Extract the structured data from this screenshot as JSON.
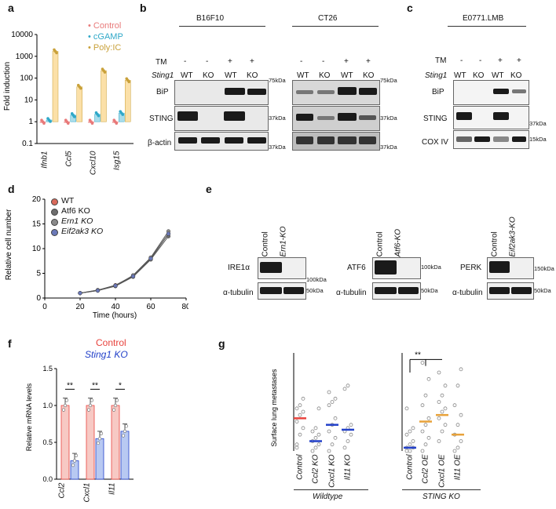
{
  "panels": {
    "a": "a",
    "b": "b",
    "c": "c",
    "d": "d",
    "e": "e",
    "f": "f",
    "g": "g"
  },
  "panel_a": {
    "ylabel": "Fold induction",
    "ticks": [
      "10000",
      "1000",
      "100",
      "10",
      "1",
      "0.1"
    ],
    "categories": [
      "Ifnb1",
      "Ccl5",
      "Cxcl10",
      "Isg15"
    ],
    "legend": [
      {
        "name": "Control",
        "color": "#e87a7a"
      },
      {
        "name": "cGAMP",
        "color": "#2fa8c8"
      },
      {
        "name": "Poly:IC",
        "color": "#c9a13a"
      }
    ]
  },
  "panel_b": {
    "cell1": "B16F10",
    "cell2": "CT26",
    "tm": "TM",
    "sting1": "Sting1",
    "tm_vals": [
      "-",
      "-",
      "+",
      "+"
    ],
    "geno": [
      "WT",
      "KO",
      "WT",
      "KO"
    ],
    "rows": [
      "BiP",
      "STING",
      "β-actin"
    ],
    "mw": [
      "75kDa",
      "37kDa",
      "37kDa"
    ]
  },
  "panel_c": {
    "cell": "E0771.LMB",
    "rows": [
      "BiP",
      "STING",
      "COX IV"
    ],
    "mw_sting": "37kDa",
    "mw_cox": "15kDa"
  },
  "panel_d": {
    "ylabel": "Relative cell number",
    "xlabel": "Time (hours)",
    "yticks": [
      "20",
      "15",
      "10",
      "5",
      "0"
    ],
    "xticks": [
      "0",
      "20",
      "40",
      "60",
      "80"
    ],
    "legend": [
      "WT",
      "Atf6 KO",
      "Ern1 KO",
      "Eif2ak3 KO"
    ],
    "legend_ital": [
      "",
      "",
      "Ern1",
      "Eif2ak3"
    ]
  },
  "panel_e": {
    "control": "Control",
    "lanes2": [
      "Ern1-KO",
      "Atf6-KO",
      "Eif2ak3-KO"
    ],
    "proteins": [
      "IRE1α",
      "ATF6",
      "PERK"
    ],
    "tubulin": "α-tubulin",
    "mw": [
      "100kDa",
      "50kDa",
      "100kDa",
      "50kDa",
      "150kDa",
      "50kDa"
    ]
  },
  "panel_f": {
    "legend": [
      {
        "name": "Control",
        "color": "#e8433d"
      },
      {
        "name": "Sting1 KO",
        "color": "#2240c9"
      }
    ],
    "ylabel": "Relative mRNA levels",
    "yticks": [
      "1.5",
      "1.0",
      "0.5",
      "0.0"
    ],
    "categories": [
      "Ccl2",
      "Cxcl1",
      "Il11"
    ],
    "sig": [
      "**",
      "**",
      "*"
    ]
  },
  "panel_g": {
    "ylabel": "Surface lung metastases",
    "left_group": "Wildtype",
    "right_group": "STING KO",
    "left_cats": [
      "Control",
      "Ccl2 KO",
      "Cxcl1 KO",
      "Il11 KO"
    ],
    "right_cats": [
      "Control",
      "Ccl2 OE",
      "Cxcl1 OE",
      "Il11 OE"
    ],
    "sig": "**"
  },
  "chart_data": [
    {
      "type": "bar",
      "panel": "a",
      "categories": [
        "Ifnb1",
        "Ccl5",
        "Cxcl10",
        "Isg15"
      ],
      "yscale": "log",
      "ylim": [
        0.1,
        10000
      ],
      "series": [
        {
          "name": "Control",
          "values": [
            1,
            1,
            1,
            1
          ]
        },
        {
          "name": "cGAMP",
          "values": [
            1.2,
            2,
            2.2,
            2.5
          ]
        },
        {
          "name": "Poly:IC",
          "values": [
            1700,
            40,
            220,
            80
          ]
        }
      ]
    },
    {
      "type": "line",
      "panel": "d",
      "x": [
        20,
        30,
        40,
        50,
        60,
        70
      ],
      "xlim": [
        0,
        80
      ],
      "ylim": [
        0,
        20
      ],
      "series": [
        {
          "name": "WT",
          "values": [
            1,
            1.6,
            2.6,
            4.5,
            8,
            13
          ]
        },
        {
          "name": "Atf6 KO",
          "values": [
            1,
            1.5,
            2.4,
            4.3,
            7.8,
            12.5
          ]
        },
        {
          "name": "Ern1 KO",
          "values": [
            1,
            1.6,
            2.5,
            4.6,
            8.2,
            13.5
          ]
        },
        {
          "name": "Eif2ak3 KO",
          "values": [
            1,
            1.5,
            2.5,
            4.4,
            8,
            13
          ]
        }
      ]
    },
    {
      "type": "bar",
      "panel": "f",
      "categories": [
        "Ccl2",
        "Cxcl1",
        "Il11"
      ],
      "ylim": [
        0,
        1.5
      ],
      "series": [
        {
          "name": "Control",
          "values": [
            1.0,
            1.0,
            1.0
          ]
        },
        {
          "name": "Sting1 KO",
          "values": [
            0.25,
            0.55,
            0.65
          ]
        }
      ]
    },
    {
      "type": "scatter",
      "panel": "g",
      "categories": [
        "Control",
        "Ccl2 KO",
        "Cxcl1 KO",
        "Il11 KO",
        "Control",
        "Ccl2 OE",
        "Cxcl1 OE",
        "Il11 OE"
      ],
      "medians": [
        10,
        3,
        8,
        6.5,
        1,
        9,
        11,
        5
      ],
      "ylim": [
        0,
        30
      ]
    }
  ]
}
